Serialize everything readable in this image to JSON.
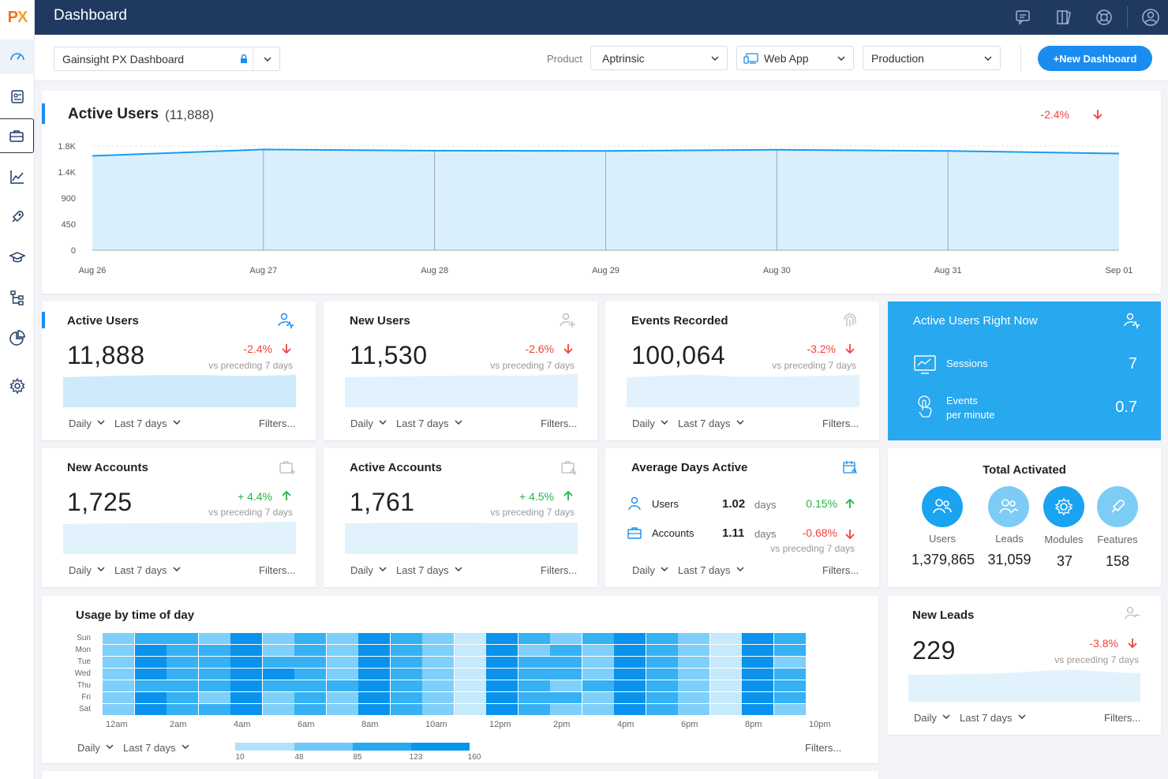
{
  "app": {
    "logo_left": "P",
    "logo_right": "X",
    "title": "Dashboard"
  },
  "header_icons": [
    "chat-icon",
    "book-icon",
    "help-icon",
    "user-icon"
  ],
  "toolbar": {
    "dashboard_select": "Gainsight PX Dashboard",
    "product_label": "Product",
    "product_value": "Aptrinsic",
    "app_value": "Web App",
    "env_value": "Production",
    "new_button": "+New Dashboard"
  },
  "active_users_chart": {
    "title": "Active Users",
    "count": "(11,888)",
    "delta": "-2.4%"
  },
  "chart_data": {
    "type": "area",
    "x": [
      "Aug 26",
      "Aug 27",
      "Aug 28",
      "Aug 29",
      "Aug 30",
      "Aug 31",
      "Sep 01"
    ],
    "series": [
      {
        "name": "Active Users",
        "values": [
          1630,
          1740,
          1720,
          1715,
          1735,
          1715,
          1670
        ]
      }
    ],
    "yticks": [
      "0",
      "450",
      "900",
      "1.4K",
      "1.8K"
    ],
    "ylim": [
      0,
      1800
    ],
    "grid": true
  },
  "cards": {
    "active_users": {
      "title": "Active Users",
      "value": "11,888",
      "delta": "-2.4%",
      "sub": "vs preceding 7 days"
    },
    "new_users": {
      "title": "New Users",
      "value": "11,530",
      "delta": "-2.6%",
      "sub": "vs preceding 7 days"
    },
    "events": {
      "title": "Events Recorded",
      "value": "100,064",
      "delta": "-3.2%",
      "sub": "vs preceding 7 days"
    },
    "new_accounts": {
      "title": "New Accounts",
      "value": "1,725",
      "delta": "+ 4.4%",
      "sub": "vs preceding 7 days"
    },
    "active_accounts": {
      "title": "Active Accounts",
      "value": "1,761",
      "delta": "+ 4.5%",
      "sub": "vs preceding 7 days"
    },
    "avg_days": {
      "title": "Average Days Active",
      "users_label": "Users",
      "users_value": "1.02",
      "users_unit": "days",
      "users_delta": "0.15%",
      "accounts_label": "Accounts",
      "accounts_value": "1.11",
      "accounts_unit": "days",
      "accounts_delta": "-0.68%",
      "sub": "vs preceding 7 days"
    },
    "new_leads": {
      "title": "New Leads",
      "value": "229",
      "delta": "-3.8%",
      "sub": "vs preceding 7 days"
    }
  },
  "footer": {
    "daily": "Daily",
    "range": "Last 7 days",
    "filters": "Filters..."
  },
  "right_now": {
    "title": "Active Users Right Now",
    "sessions_label": "Sessions",
    "sessions_value": "7",
    "events_label_1": "Events",
    "events_label_2": "per minute",
    "events_value": "0.7"
  },
  "total_activated": {
    "title": "Total Activated",
    "items": [
      {
        "label": "Users",
        "value": "1,379,865"
      },
      {
        "label": "Leads",
        "value": "31,059"
      },
      {
        "label": "Modules",
        "value": "37"
      },
      {
        "label": "Features",
        "value": "158"
      }
    ]
  },
  "usage": {
    "title": "Usage by time of day",
    "days": [
      "Sun",
      "Mon",
      "Tue",
      "Wed",
      "Thu",
      "Fri",
      "Sat"
    ],
    "hours": [
      "12am",
      "2am",
      "4am",
      "6am",
      "8am",
      "10am",
      "12pm",
      "2pm",
      "4pm",
      "6pm",
      "8pm",
      "10pm"
    ],
    "legend": [
      "10",
      "48",
      "85",
      "123",
      "160"
    ],
    "grid": [
      [
        1,
        2,
        2,
        1,
        3,
        1,
        2,
        1,
        3,
        2,
        1,
        0,
        3,
        2,
        1,
        2,
        3,
        2,
        1,
        0,
        3,
        2
      ],
      [
        1,
        3,
        2,
        2,
        3,
        1,
        2,
        1,
        3,
        2,
        1,
        0,
        3,
        1,
        2,
        1,
        3,
        2,
        1,
        0,
        3,
        2
      ],
      [
        1,
        3,
        2,
        2,
        3,
        2,
        2,
        1,
        3,
        2,
        1,
        0,
        3,
        2,
        2,
        1,
        3,
        2,
        1,
        0,
        3,
        1
      ],
      [
        1,
        3,
        2,
        2,
        3,
        3,
        2,
        1,
        3,
        2,
        1,
        0,
        3,
        2,
        2,
        1,
        3,
        2,
        1,
        0,
        3,
        2
      ],
      [
        1,
        2,
        2,
        2,
        3,
        2,
        2,
        2,
        3,
        2,
        1,
        0,
        3,
        2,
        1,
        2,
        3,
        2,
        1,
        0,
        3,
        2
      ],
      [
        1,
        3,
        2,
        1,
        3,
        1,
        2,
        1,
        3,
        2,
        1,
        0,
        3,
        2,
        2,
        1,
        3,
        2,
        1,
        0,
        3,
        2
      ],
      [
        1,
        3,
        2,
        2,
        3,
        1,
        2,
        1,
        3,
        2,
        1,
        0,
        3,
        2,
        1,
        1,
        3,
        2,
        1,
        0,
        3,
        1
      ]
    ]
  },
  "colors": {
    "accent": "#1a8cf0",
    "navy": "#1f3961",
    "negative": "#f0433a",
    "positive": "#26b34a",
    "panel": "#28a8ee"
  }
}
